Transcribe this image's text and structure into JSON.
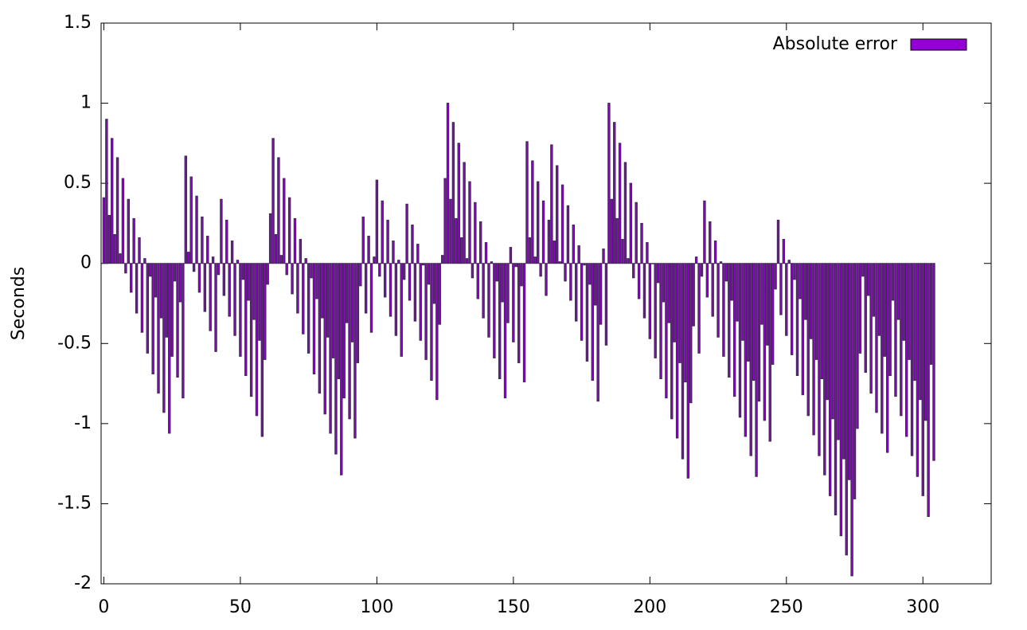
{
  "chart_data": {
    "type": "bar",
    "y_label": "Seconds",
    "series": [
      {
        "name": "Absolute error",
        "color": "#9400d3",
        "values": [
          0.41,
          0.9,
          0.3,
          0.78,
          0.18,
          0.66,
          0.06,
          0.53,
          -0.06,
          0.4,
          -0.18,
          0.28,
          -0.31,
          0.16,
          -0.43,
          0.03,
          -0.56,
          -0.08,
          -0.69,
          -0.21,
          -0.81,
          -0.34,
          -0.93,
          -0.46,
          -1.06,
          -0.58,
          -0.11,
          -0.71,
          -0.24,
          -0.84,
          0.67,
          0.07,
          0.54,
          -0.05,
          0.42,
          -0.18,
          0.29,
          -0.3,
          0.17,
          -0.42,
          0.04,
          -0.55,
          -0.07,
          0.4,
          -0.2,
          0.27,
          -0.33,
          0.14,
          -0.45,
          0.02,
          -0.58,
          -0.1,
          -0.7,
          -0.23,
          -0.83,
          -0.35,
          -0.95,
          -0.48,
          -1.08,
          -0.6,
          -0.13,
          0.31,
          0.78,
          0.18,
          0.66,
          0.05,
          0.53,
          -0.07,
          0.41,
          -0.19,
          0.28,
          -0.31,
          0.15,
          -0.44,
          0.03,
          -0.56,
          -0.09,
          -0.69,
          -0.22,
          -0.81,
          -0.34,
          -0.94,
          -0.46,
          -1.06,
          -0.59,
          -1.19,
          -0.72,
          -1.32,
          -0.84,
          -0.37,
          -0.97,
          -0.49,
          -1.09,
          -0.62,
          -0.14,
          0.29,
          -0.31,
          0.17,
          -0.43,
          0.04,
          0.52,
          -0.08,
          0.39,
          -0.21,
          0.27,
          -0.33,
          0.14,
          -0.45,
          0.02,
          -0.58,
          -0.1,
          0.37,
          -0.23,
          0.24,
          -0.36,
          0.12,
          -0.48,
          -0.01,
          -0.6,
          -0.13,
          -0.73,
          -0.25,
          -0.85,
          -0.38,
          0.05,
          0.53,
          1.0,
          0.4,
          0.88,
          0.28,
          0.75,
          0.16,
          0.63,
          0.03,
          0.51,
          -0.09,
          0.38,
          -0.22,
          0.26,
          -0.34,
          0.13,
          -0.46,
          0.01,
          -0.59,
          -0.11,
          -0.72,
          -0.24,
          -0.84,
          -0.37,
          0.1,
          -0.49,
          -0.02,
          -0.62,
          -0.14,
          -0.74,
          0.76,
          0.16,
          0.64,
          0.04,
          0.51,
          -0.08,
          0.39,
          -0.2,
          0.27,
          0.74,
          0.14,
          0.61,
          0.01,
          0.49,
          -0.11,
          0.36,
          -0.23,
          0.24,
          -0.36,
          0.11,
          -0.48,
          -0.01,
          -0.61,
          -0.13,
          -0.73,
          -0.26,
          -0.86,
          -0.38,
          0.09,
          -0.51,
          1.0,
          0.4,
          0.88,
          0.28,
          0.75,
          0.15,
          0.63,
          0.03,
          0.5,
          -0.09,
          0.38,
          -0.22,
          0.25,
          -0.34,
          0.13,
          -0.47,
          0.0,
          -0.59,
          -0.12,
          -0.72,
          -0.24,
          -0.84,
          -0.37,
          -0.97,
          -0.49,
          -1.09,
          -0.62,
          -1.22,
          -0.74,
          -1.34,
          -0.87,
          -0.39,
          0.04,
          -0.56,
          -0.08,
          0.39,
          -0.21,
          0.26,
          -0.33,
          0.14,
          -0.46,
          0.01,
          -0.58,
          -0.11,
          -0.71,
          -0.23,
          -0.83,
          -0.36,
          -0.96,
          -0.48,
          -1.08,
          -0.61,
          -1.2,
          -0.73,
          -1.33,
          -0.86,
          -0.38,
          -0.98,
          -0.51,
          -1.11,
          -0.63,
          -0.16,
          0.27,
          -0.32,
          0.15,
          -0.45,
          0.02,
          -0.57,
          -0.1,
          -0.7,
          -0.22,
          -0.82,
          -0.35,
          -0.95,
          -0.47,
          -1.07,
          -0.6,
          -1.2,
          -0.72,
          -1.32,
          -0.85,
          -1.45,
          -0.97,
          -1.57,
          -1.1,
          -1.7,
          -1.22,
          -1.82,
          -1.35,
          -1.95,
          -1.47,
          -1.03,
          -0.56,
          -0.08,
          -0.68,
          -0.2,
          -0.81,
          -0.33,
          -0.93,
          -0.45,
          -1.06,
          -0.58,
          -1.18,
          -0.7,
          -0.23,
          -0.83,
          -0.35,
          -0.95,
          -0.48,
          -1.08,
          -0.6,
          -1.2,
          -0.73,
          -1.33,
          -0.85,
          -1.45,
          -0.98,
          -1.58,
          -0.63,
          -1.23
        ]
      }
    ],
    "x": [
      0,
      1,
      2,
      3,
      4,
      5,
      6,
      7,
      8,
      9,
      10,
      11,
      12,
      13,
      14,
      15,
      16,
      17,
      18,
      19,
      20,
      21,
      22,
      23,
      24,
      25,
      26,
      27,
      28,
      29,
      30,
      31,
      32,
      33,
      34,
      35,
      36,
      37,
      38,
      39,
      40,
      41,
      42,
      43,
      44,
      45,
      46,
      47,
      48,
      49,
      50,
      51,
      52,
      53,
      54,
      55,
      56,
      57,
      58,
      59,
      60,
      61,
      62,
      63,
      64,
      65,
      66,
      67,
      68,
      69,
      70,
      71,
      72,
      73,
      74,
      75,
      76,
      77,
      78,
      79,
      80,
      81,
      82,
      83,
      84,
      85,
      86,
      87,
      88,
      89,
      90,
      91,
      92,
      93,
      94,
      95,
      96,
      97,
      98,
      99,
      100,
      101,
      102,
      103,
      104,
      105,
      106,
      107,
      108,
      109,
      110,
      111,
      112,
      113,
      114,
      115,
      116,
      117,
      118,
      119,
      120,
      121,
      122,
      123,
      124,
      125,
      126,
      127,
      128,
      129,
      130,
      131,
      132,
      133,
      134,
      135,
      136,
      137,
      138,
      139,
      140,
      141,
      142,
      143,
      144,
      145,
      146,
      147,
      148,
      149,
      150,
      151,
      152,
      153,
      154,
      155,
      156,
      157,
      158,
      159,
      160,
      161,
      162,
      163,
      164,
      165,
      166,
      167,
      168,
      169,
      170,
      171,
      172,
      173,
      174,
      175,
      176,
      177,
      178,
      179,
      180,
      181,
      182,
      183,
      184,
      185,
      186,
      187,
      188,
      189,
      190,
      191,
      192,
      193,
      194,
      195,
      196,
      197,
      198,
      199,
      200,
      201,
      202,
      203,
      204,
      205,
      206,
      207,
      208,
      209,
      210,
      211,
      212,
      213,
      214,
      215,
      216,
      217,
      218,
      219,
      220,
      221,
      222,
      223,
      224,
      225,
      226,
      227,
      228,
      229,
      230,
      231,
      232,
      233,
      234,
      235,
      236,
      237,
      238,
      239,
      240,
      241,
      242,
      243,
      244,
      245,
      246,
      247,
      248,
      249,
      250,
      251,
      252,
      253,
      254,
      255,
      256,
      257,
      258,
      259,
      260,
      261,
      262,
      263,
      264,
      265,
      266,
      267,
      268,
      269,
      270,
      271,
      272,
      273,
      274,
      275,
      276,
      277,
      278,
      279,
      280,
      281,
      282,
      283,
      284,
      285,
      286,
      287,
      288,
      289,
      290,
      291,
      292,
      293,
      294,
      295,
      296,
      297,
      298,
      299,
      300,
      301,
      302,
      303,
      304
    ],
    "xlim": [
      -1,
      325
    ],
    "xticks": [
      0,
      50,
      100,
      150,
      200,
      250,
      300
    ],
    "ylim": [
      -2,
      1.5
    ],
    "yticks": [
      -2,
      -1.5,
      -1,
      -0.5,
      0,
      0.5,
      1,
      1.5
    ],
    "grid": false,
    "legend": "top-right"
  }
}
